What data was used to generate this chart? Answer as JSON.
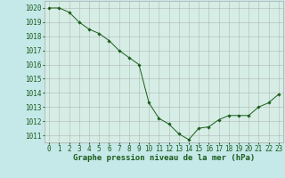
{
  "x": [
    0,
    1,
    2,
    3,
    4,
    5,
    6,
    7,
    8,
    9,
    10,
    11,
    12,
    13,
    14,
    15,
    16,
    17,
    18,
    19,
    20,
    21,
    22,
    23
  ],
  "y": [
    1020.0,
    1020.0,
    1019.7,
    1019.0,
    1018.5,
    1018.2,
    1017.7,
    1017.0,
    1016.5,
    1016.0,
    1013.3,
    1012.2,
    1011.8,
    1011.1,
    1010.7,
    1011.5,
    1011.6,
    1012.1,
    1012.4,
    1012.4,
    1012.4,
    1013.0,
    1013.3,
    1013.9
  ],
  "ylim": [
    1010.5,
    1020.5
  ],
  "yticks": [
    1011,
    1012,
    1013,
    1014,
    1015,
    1016,
    1017,
    1018,
    1019,
    1020
  ],
  "xlim": [
    -0.5,
    23.5
  ],
  "xticks": [
    0,
    1,
    2,
    3,
    4,
    5,
    6,
    7,
    8,
    9,
    10,
    11,
    12,
    13,
    14,
    15,
    16,
    17,
    18,
    19,
    20,
    21,
    22,
    23
  ],
  "xlabel": "Graphe pression niveau de la mer (hPa)",
  "line_color": "#1a5c1a",
  "marker": "D",
  "marker_size": 1.8,
  "bg_color": "#c5e8e8",
  "grid_color": "#aaaaaa",
  "plot_bg_color": "#d5ede5",
  "tick_color": "#1a5c1a",
  "xlabel_fontsize": 6.5,
  "tick_fontsize": 5.5
}
